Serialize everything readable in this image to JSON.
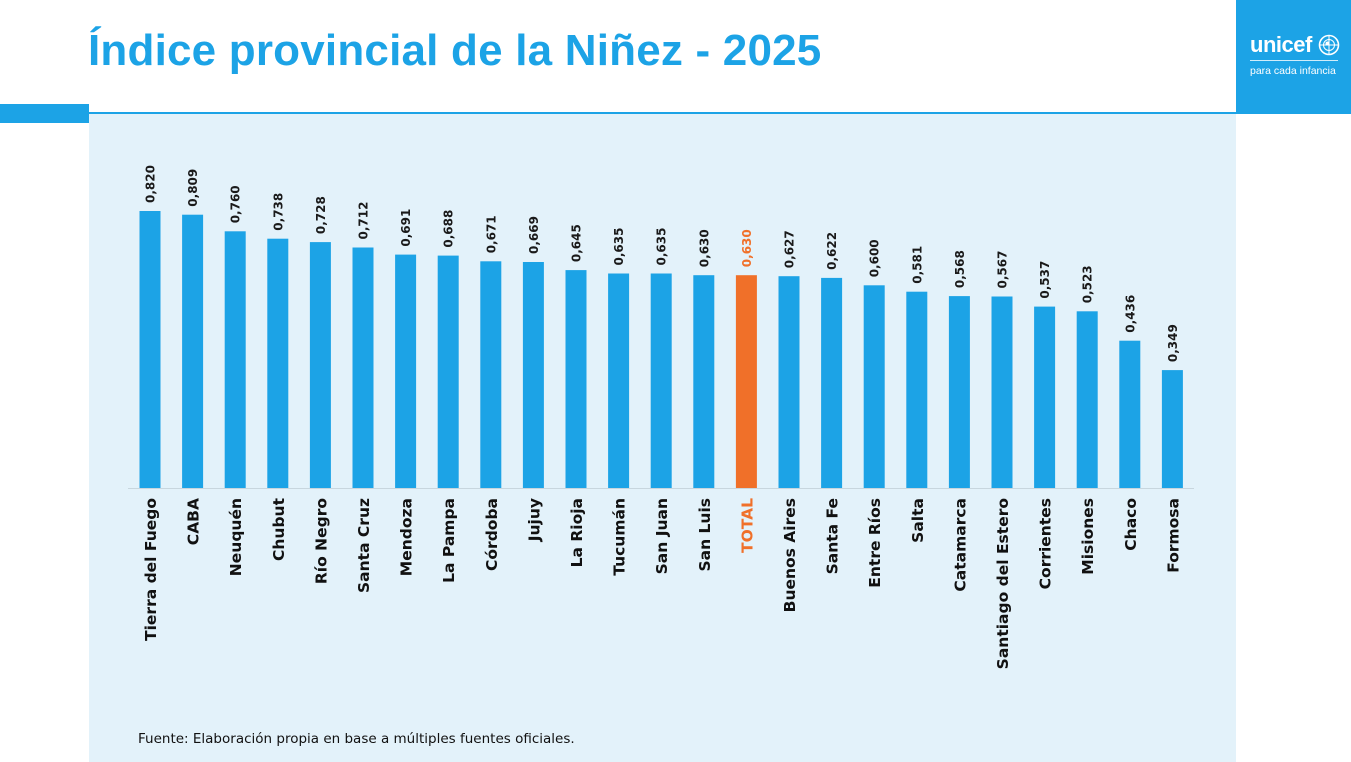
{
  "header": {
    "title": "Índice provincial de la Niñez - 2025"
  },
  "logo": {
    "word": "unicef",
    "tagline": "para cada infancia",
    "icon": "globe-icon"
  },
  "colors": {
    "brand": "#1ca3e6",
    "highlight": "#f07029",
    "panel": "#e3f2fa"
  },
  "footer": {
    "source": "Fuente: Elaboración propia en base a múltiples fuentes oficiales."
  },
  "chart_data": {
    "type": "bar",
    "categories": [
      "Tierra del Fuego",
      "CABA",
      "Neuquén",
      "Chubut",
      "Río Negro",
      "Santa Cruz",
      "Mendoza",
      "La Pampa",
      "Córdoba",
      "Jujuy",
      "La Rioja",
      "Tucumán",
      "San Juan",
      "San Luis",
      "TOTAL",
      "Buenos Aires",
      "Santa Fe",
      "Entre Ríos",
      "Salta",
      "Catamarca",
      "Santiago del Estero",
      "Corrientes",
      "Misiones",
      "Chaco",
      "Formosa"
    ],
    "values": [
      0.82,
      0.809,
      0.76,
      0.738,
      0.728,
      0.712,
      0.691,
      0.688,
      0.671,
      0.669,
      0.645,
      0.635,
      0.635,
      0.63,
      0.63,
      0.627,
      0.622,
      0.6,
      0.581,
      0.568,
      0.567,
      0.537,
      0.523,
      0.436,
      0.349
    ],
    "value_labels": [
      "0,820",
      "0,809",
      "0,760",
      "0,738",
      "0,728",
      "0,712",
      "0,691",
      "0,688",
      "0,671",
      "0,669",
      "0,645",
      "0,635",
      "0,635",
      "0,630",
      "0,630",
      "0,627",
      "0,622",
      "0,600",
      "0,581",
      "0,568",
      "0,567",
      "0,537",
      "0,523",
      "0,436",
      "0,349"
    ],
    "highlight_category": "TOTAL",
    "ylim": [
      0,
      0.82
    ],
    "grid": false,
    "legend": "none",
    "title": "",
    "xlabel": "",
    "ylabel": ""
  }
}
